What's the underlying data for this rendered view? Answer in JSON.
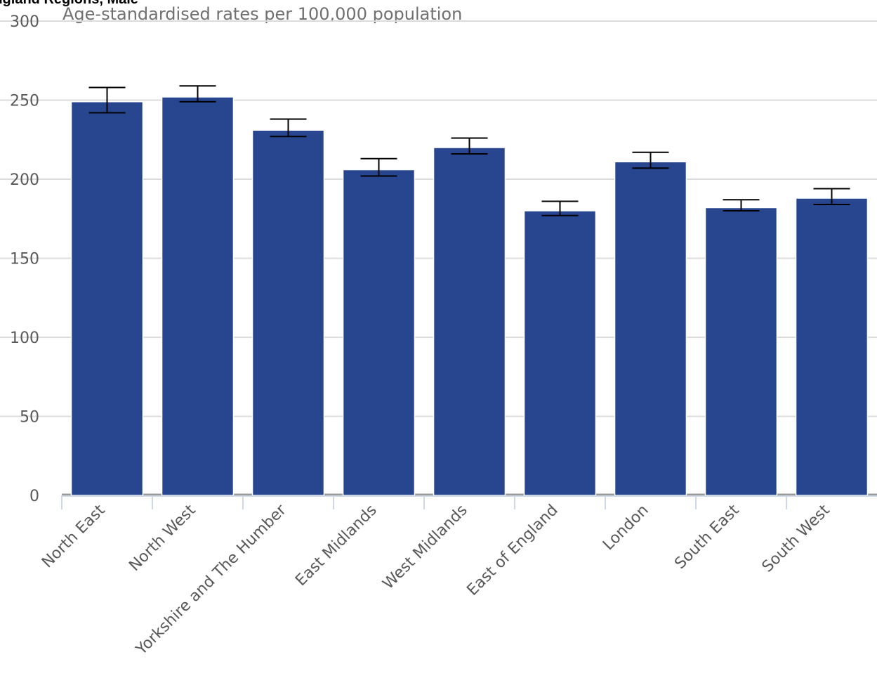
{
  "chart_data": {
    "type": "bar",
    "title": "England Regions, Male",
    "subtitle": "Age-standardised rates per 100,000 population",
    "xlabel": "",
    "ylabel": "",
    "ylim": [
      0,
      300
    ],
    "yticks": [
      0,
      50,
      100,
      150,
      200,
      250,
      300
    ],
    "grid": true,
    "bar_color": "#27468f",
    "error_bar_color": "#000000",
    "categories": [
      "North East",
      "North West",
      "Yorkshire and The Humber",
      "East Midlands",
      "West Midlands",
      "East of England",
      "London",
      "South East",
      "South West"
    ],
    "values": [
      249,
      252,
      231,
      206,
      220,
      180,
      211,
      182,
      188
    ],
    "error_lower": [
      242,
      249,
      227,
      202,
      216,
      177,
      207,
      180,
      184
    ],
    "error_upper": [
      258,
      259,
      238,
      213,
      226,
      186,
      217,
      187,
      194
    ]
  }
}
